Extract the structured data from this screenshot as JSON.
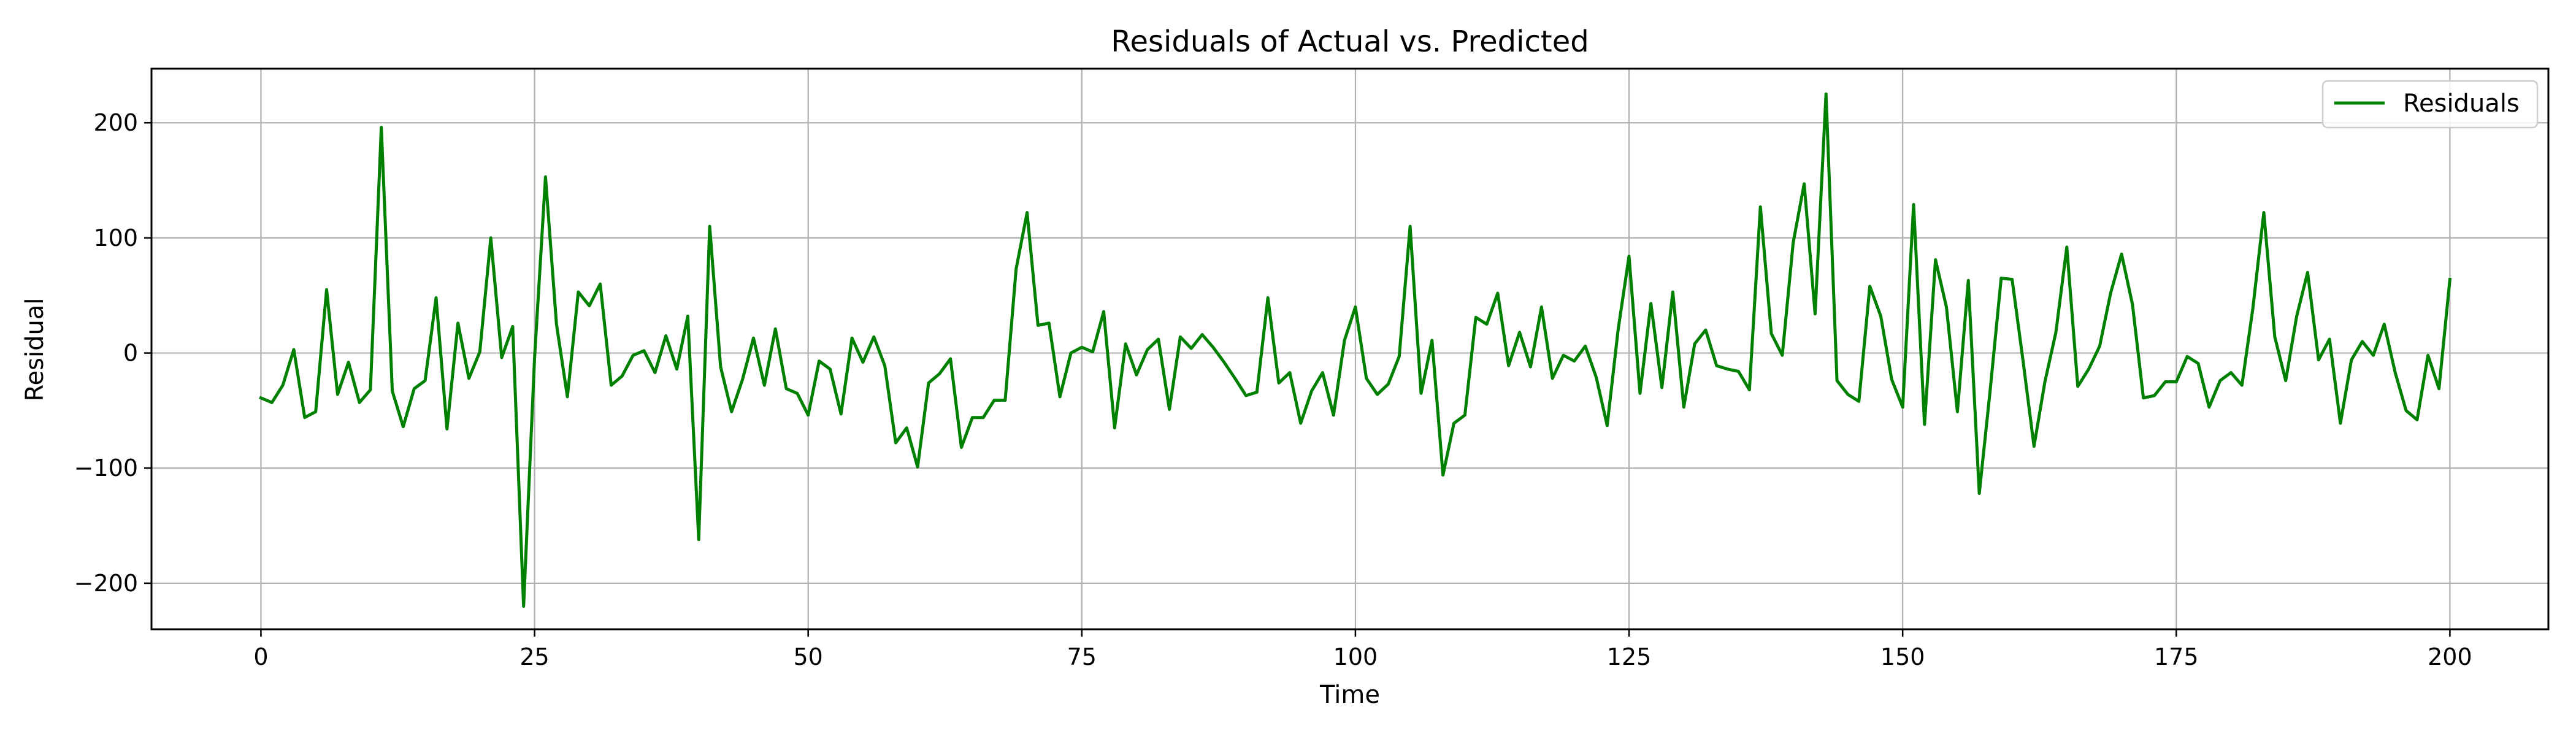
{
  "chart_data": {
    "type": "line",
    "title": "Residuals of Actual vs. Predicted",
    "xlabel": "Time",
    "ylabel": "Residual",
    "xlim": [
      -10,
      209
    ],
    "ylim": [
      -240,
      247
    ],
    "x_ticks": [
      0,
      25,
      50,
      75,
      100,
      125,
      150,
      175,
      200
    ],
    "x_tick_labels": [
      "0",
      "25",
      "50",
      "75",
      "100",
      "125",
      "150",
      "175",
      "200"
    ],
    "y_ticks": [
      -200,
      -100,
      0,
      100,
      200
    ],
    "y_tick_labels": [
      "−200",
      "−100",
      "0",
      "100",
      "200"
    ],
    "grid": true,
    "legend": "top-right",
    "series": [
      {
        "name": "Residuals",
        "color": "#008000",
        "x_start": 0,
        "x_step": 1,
        "values": [
          -39,
          -43,
          -28,
          3,
          -56,
          -51,
          55,
          -36,
          -8,
          -43,
          -32,
          196,
          -33,
          -64,
          -31,
          -24,
          48,
          -66,
          26,
          -22,
          1,
          100,
          -4,
          23,
          -220,
          -4,
          153,
          25,
          -38,
          53,
          41,
          60,
          -28,
          -20,
          -2,
          2,
          -17,
          15,
          -14,
          32,
          -162,
          110,
          -12,
          -51,
          -23,
          13,
          -28,
          21,
          -31,
          -35,
          -54,
          -7,
          -14,
          -53,
          13,
          -8,
          14,
          -11,
          -78,
          -65,
          -99,
          -26,
          -18,
          -5,
          -82,
          -56,
          -56,
          -41,
          -41,
          73,
          122,
          24,
          26,
          -38,
          0,
          5,
          1,
          36,
          -65,
          8,
          -19,
          3,
          12,
          -49,
          14,
          4,
          16,
          5,
          -8,
          -22,
          -37,
          -34,
          48,
          -26,
          -17,
          -61,
          -33,
          -17,
          -54,
          11,
          40,
          -22,
          -36,
          -27,
          -3,
          110,
          -35,
          11,
          -106,
          -61,
          -54,
          31,
          25,
          52,
          -11,
          18,
          -12,
          40,
          -22,
          -2,
          -7,
          6,
          -21,
          -63,
          20,
          84,
          -35,
          43,
          -30,
          53,
          -47,
          8,
          20,
          -11,
          -14,
          -16,
          -32,
          127,
          17,
          -2,
          96,
          147,
          34,
          225,
          -24,
          -36,
          -42,
          58,
          32,
          -23,
          -47,
          129,
          -62,
          81,
          40,
          -51,
          63,
          -122,
          -32,
          65,
          64,
          -7,
          -81,
          -25,
          18,
          92,
          -29,
          -14,
          6,
          52,
          86,
          42,
          -39,
          -37,
          -25,
          -25,
          -3,
          -9,
          -47,
          -24,
          -17,
          -28,
          39,
          122,
          14,
          -24,
          32,
          70,
          -6,
          12,
          -61,
          -6,
          10,
          -2,
          25,
          -17,
          -50,
          -58,
          -2,
          -31,
          64
        ]
      }
    ]
  }
}
